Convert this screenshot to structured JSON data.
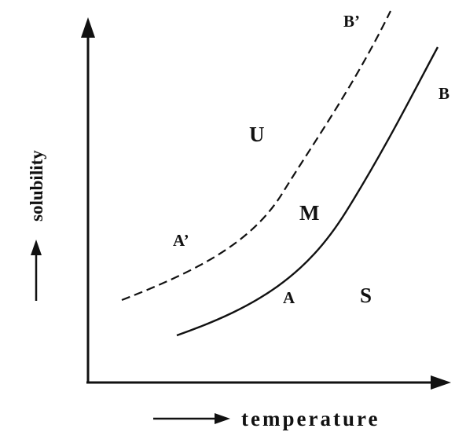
{
  "axes": {
    "x_label": "temperature",
    "y_label": "solubility"
  },
  "curves": {
    "solubility_curve": {
      "start_label": "A",
      "end_label": "B",
      "style": "solid"
    },
    "supersolubility_curve": {
      "start_label": "A’",
      "end_label": "B’",
      "style": "dashed"
    }
  },
  "regions": {
    "unstable": "U",
    "metastable": "M",
    "stable": "S"
  },
  "colors": {
    "ink": "#111111",
    "background": "#ffffff"
  }
}
